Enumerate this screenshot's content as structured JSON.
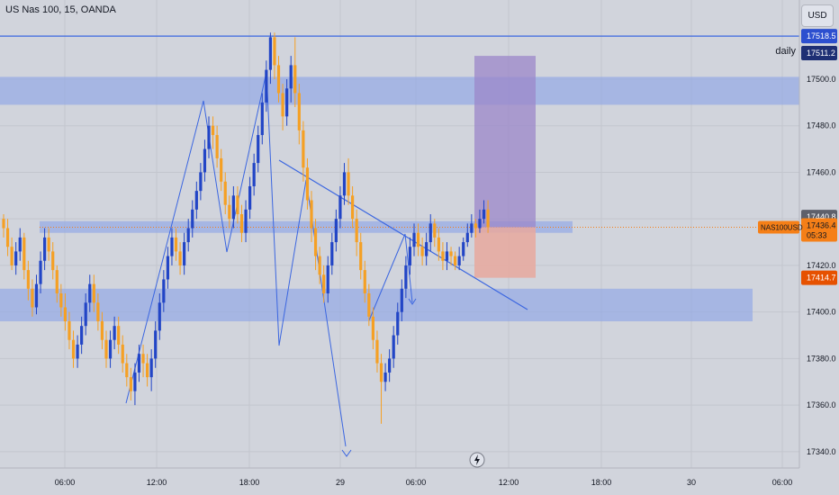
{
  "header": {
    "title": "US Nas 100, 15, OANDA"
  },
  "currency_button": {
    "label": "USD"
  },
  "annotations": {
    "daily": "daily"
  },
  "price_tags": {
    "daily_line": "17518.5",
    "upper_label": "17511.2",
    "last_high": "17440.8",
    "symbol": "NAS100USD",
    "current": "17436.4",
    "countdown": "05:33",
    "stop": "17414.7"
  },
  "colors": {
    "up": "#2245c6",
    "down": "#f5a024",
    "zone": "#8fa6e6",
    "line": "#3b66e0",
    "target": "#9b87c9",
    "stop": "#e8a89e",
    "tag_blue": "#2c4fcf",
    "tag_navy": "#1e2f74",
    "tag_orange": "#f57f17",
    "tag_gray": "#5d606b"
  },
  "chart_data": {
    "type": "candlestick",
    "title": "US Nas 100, 15, OANDA",
    "y_ticks": [
      17340,
      17360,
      17380,
      17400,
      17420,
      17440,
      17460,
      17480,
      17500
    ],
    "y_tick_labels": [
      "17340.0",
      "17360.0",
      "17380.0",
      "17400.0",
      "17420.0",
      "17440.0",
      "17460.0",
      "17480.0",
      "17500.0"
    ],
    "ylim": [
      17333,
      17534
    ],
    "x_tick_labels": [
      "06:00",
      "12:00",
      "18:00",
      "29",
      "06:00",
      "12:00",
      "18:00",
      "30",
      "06:00"
    ],
    "grid": true,
    "levels": {
      "daily": 17518.5,
      "label_2": 17511.2,
      "last_high": 17440.8,
      "current": 17436.4,
      "stop": 17414.7
    },
    "zones": [
      {
        "top": 17501,
        "bottom": 17489
      },
      {
        "top": 17439,
        "bottom": 17434
      },
      {
        "top": 17410,
        "bottom": 17396
      }
    ],
    "position": {
      "entry": 17436.4,
      "target": 17510,
      "stop": 17414.7
    },
    "candles": [
      [
        17440,
        17436,
        17442,
        17432
      ],
      [
        17436,
        17428,
        17440,
        17424
      ],
      [
        17428,
        17420,
        17432,
        17418
      ],
      [
        17420,
        17426,
        17430,
        17416
      ],
      [
        17426,
        17432,
        17436,
        17422
      ],
      [
        17432,
        17418,
        17434,
        17414
      ],
      [
        17418,
        17410,
        17422,
        17405
      ],
      [
        17410,
        17402,
        17414,
        17398
      ],
      [
        17402,
        17412,
        17416,
        17399
      ],
      [
        17412,
        17422,
        17426,
        17408
      ],
      [
        17422,
        17432,
        17436,
        17418
      ],
      [
        17432,
        17426,
        17436,
        17422
      ],
      [
        17426,
        17418,
        17430,
        17414
      ],
      [
        17418,
        17408,
        17420,
        17404
      ],
      [
        17408,
        17402,
        17412,
        17398
      ],
      [
        17402,
        17396,
        17408,
        17392
      ],
      [
        17396,
        17388,
        17400,
        17384
      ],
      [
        17388,
        17380,
        17392,
        17376
      ],
      [
        17380,
        17386,
        17390,
        17376
      ],
      [
        17386,
        17394,
        17398,
        17382
      ],
      [
        17394,
        17404,
        17408,
        17390
      ],
      [
        17404,
        17412,
        17416,
        17400
      ],
      [
        17412,
        17404,
        17416,
        17400
      ],
      [
        17404,
        17396,
        17408,
        17392
      ],
      [
        17396,
        17388,
        17400,
        17384
      ],
      [
        17388,
        17380,
        17392,
        17376
      ],
      [
        17380,
        17388,
        17392,
        17376
      ],
      [
        17388,
        17394,
        17398,
        17384
      ],
      [
        17394,
        17386,
        17398,
        17382
      ],
      [
        17386,
        17378,
        17390,
        17374
      ],
      [
        17378,
        17372,
        17382,
        17368
      ],
      [
        17372,
        17366,
        17376,
        17362
      ],
      [
        17366,
        17374,
        17378,
        17360
      ],
      [
        17374,
        17382,
        17386,
        17370
      ],
      [
        17382,
        17378,
        17386,
        17372
      ],
      [
        17378,
        17372,
        17382,
        17368
      ],
      [
        17372,
        17380,
        17384,
        17366
      ],
      [
        17380,
        17392,
        17396,
        17376
      ],
      [
        17392,
        17404,
        17408,
        17388
      ],
      [
        17404,
        17414,
        17418,
        17400
      ],
      [
        17414,
        17424,
        17428,
        17410
      ],
      [
        17424,
        17432,
        17436,
        17420
      ],
      [
        17432,
        17426,
        17436,
        17422
      ],
      [
        17426,
        17420,
        17430,
        17416
      ],
      [
        17420,
        17430,
        17434,
        17416
      ],
      [
        17430,
        17436,
        17440,
        17426
      ],
      [
        17436,
        17444,
        17448,
        17432
      ],
      [
        17444,
        17452,
        17456,
        17440
      ],
      [
        17452,
        17460,
        17464,
        17448
      ],
      [
        17460,
        17470,
        17474,
        17456
      ],
      [
        17470,
        17480,
        17484,
        17466
      ],
      [
        17480,
        17476,
        17484,
        17470
      ],
      [
        17476,
        17466,
        17480,
        17462
      ],
      [
        17466,
        17456,
        17470,
        17452
      ],
      [
        17456,
        17446,
        17460,
        17442
      ],
      [
        17446,
        17440,
        17450,
        17436
      ],
      [
        17440,
        17450,
        17454,
        17436
      ],
      [
        17450,
        17442,
        17454,
        17438
      ],
      [
        17442,
        17434,
        17446,
        17430
      ],
      [
        17434,
        17444,
        17448,
        17430
      ],
      [
        17444,
        17454,
        17458,
        17440
      ],
      [
        17454,
        17464,
        17468,
        17450
      ],
      [
        17464,
        17476,
        17480,
        17460
      ],
      [
        17476,
        17490,
        17494,
        17472
      ],
      [
        17490,
        17504,
        17508,
        17486
      ],
      [
        17504,
        17518,
        17520,
        17498
      ],
      [
        17518,
        17506,
        17520,
        17500
      ],
      [
        17506,
        17494,
        17510,
        17490
      ],
      [
        17494,
        17484,
        17498,
        17478
      ],
      [
        17484,
        17496,
        17500,
        17480
      ],
      [
        17496,
        17506,
        17510,
        17490
      ],
      [
        17506,
        17494,
        17518,
        17488
      ],
      [
        17494,
        17478,
        17498,
        17472
      ],
      [
        17478,
        17462,
        17482,
        17456
      ],
      [
        17462,
        17448,
        17466,
        17444
      ],
      [
        17448,
        17436,
        17452,
        17430
      ],
      [
        17436,
        17424,
        17440,
        17418
      ],
      [
        17424,
        17416,
        17428,
        17412
      ],
      [
        17416,
        17408,
        17420,
        17404
      ],
      [
        17408,
        17420,
        17424,
        17404
      ],
      [
        17420,
        17430,
        17434,
        17416
      ],
      [
        17430,
        17440,
        17444,
        17426
      ],
      [
        17440,
        17450,
        17454,
        17436
      ],
      [
        17450,
        17460,
        17464,
        17446
      ],
      [
        17460,
        17450,
        17466,
        17446
      ],
      [
        17450,
        17440,
        17454,
        17436
      ],
      [
        17440,
        17430,
        17444,
        17424
      ],
      [
        17430,
        17418,
        17434,
        17414
      ],
      [
        17418,
        17408,
        17422,
        17404
      ],
      [
        17408,
        17398,
        17412,
        17394
      ],
      [
        17398,
        17388,
        17402,
        17384
      ],
      [
        17388,
        17378,
        17392,
        17374
      ],
      [
        17378,
        17370,
        17382,
        17352
      ],
      [
        17370,
        17374,
        17378,
        17366
      ],
      [
        17374,
        17380,
        17384,
        17370
      ],
      [
        17380,
        17390,
        17394,
        17376
      ],
      [
        17390,
        17400,
        17404,
        17386
      ],
      [
        17400,
        17410,
        17414,
        17396
      ],
      [
        17410,
        17420,
        17424,
        17406
      ],
      [
        17420,
        17428,
        17432,
        17416
      ],
      [
        17428,
        17434,
        17438,
        17424
      ],
      [
        17434,
        17428,
        17438,
        17424
      ],
      [
        17428,
        17424,
        17432,
        17420
      ],
      [
        17424,
        17430,
        17434,
        17420
      ],
      [
        17430,
        17438,
        17442,
        17426
      ],
      [
        17438,
        17432,
        17440,
        17428
      ],
      [
        17432,
        17426,
        17436,
        17422
      ],
      [
        17426,
        17422,
        17430,
        17418
      ],
      [
        17422,
        17426,
        17430,
        17418
      ],
      [
        17426,
        17424,
        17428,
        17420
      ],
      [
        17424,
        17420,
        17426,
        17418
      ],
      [
        17420,
        17424,
        17428,
        17418
      ],
      [
        17424,
        17430,
        17432,
        17422
      ],
      [
        17430,
        17434,
        17438,
        17428
      ],
      [
        17434,
        17438,
        17442,
        17432
      ],
      [
        17438,
        17436,
        17440,
        17432
      ],
      [
        17436,
        17440,
        17444,
        17434
      ],
      [
        17440,
        17444,
        17448,
        17438
      ],
      [
        17444,
        17436.4,
        17448,
        17434
      ]
    ]
  }
}
